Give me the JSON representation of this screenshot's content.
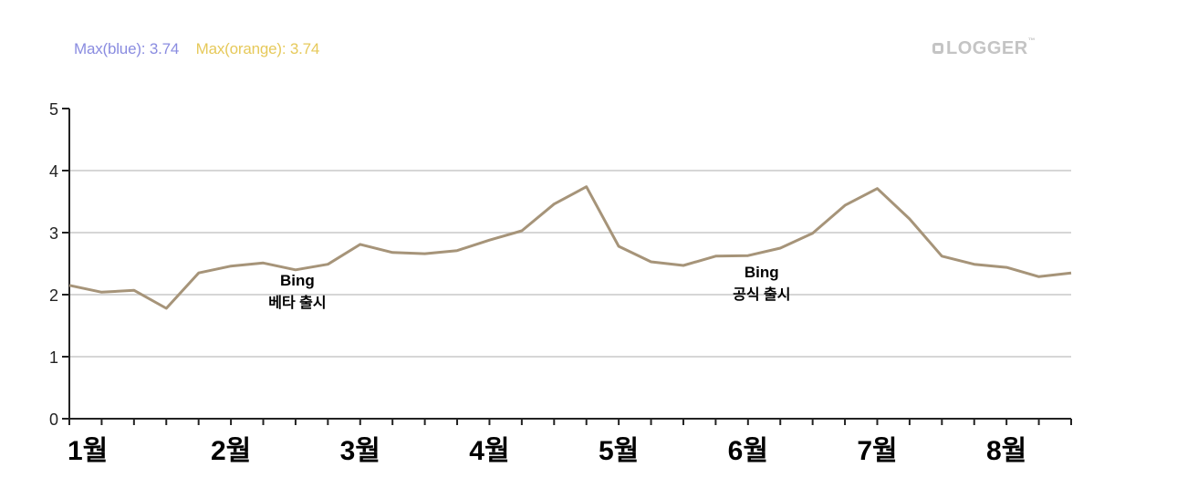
{
  "header": {
    "max_blue_label": "Max(blue): 3.74",
    "max_orange_label": "Max(orange): 3.74",
    "logo_text": "LOGGER",
    "logo_tm": "™"
  },
  "colors": {
    "line": "#a69479",
    "grid": "#d6d6d6",
    "axis": "#222222",
    "blue_label": "#8a8ce0",
    "orange_label": "#e6c95a"
  },
  "chart_data": {
    "type": "line",
    "title": "",
    "xlabel": "",
    "ylabel": "",
    "ylim": [
      0,
      5
    ],
    "yticks": [
      0,
      1,
      2,
      3,
      4,
      5
    ],
    "grid": true,
    "x_tick_labels": [
      {
        "index": 0,
        "label": "1월"
      },
      {
        "index": 5,
        "label": "2월"
      },
      {
        "index": 9,
        "label": "3월"
      },
      {
        "index": 13,
        "label": "4월"
      },
      {
        "index": 17,
        "label": "5월"
      },
      {
        "index": 21,
        "label": "6월"
      },
      {
        "index": 25,
        "label": "7월"
      },
      {
        "index": 29,
        "label": "8월"
      }
    ],
    "series": [
      {
        "name": "orange",
        "values": [
          2.15,
          2.04,
          2.07,
          1.78,
          2.35,
          2.46,
          2.51,
          2.4,
          2.49,
          2.81,
          2.68,
          2.66,
          2.71,
          2.88,
          3.03,
          3.46,
          3.74,
          2.78,
          2.53,
          2.47,
          2.62,
          2.63,
          2.75,
          2.99,
          3.44,
          3.71,
          3.22,
          2.62,
          2.49,
          2.44,
          2.29,
          2.35
        ]
      }
    ],
    "annotations": [
      {
        "index": 7,
        "line1": "Bing",
        "line2": "베타 출시"
      },
      {
        "index": 21,
        "line1": "Bing",
        "line2": "공식 출시"
      }
    ],
    "stats": {
      "max_blue": 3.74,
      "max_orange": 3.74
    }
  }
}
